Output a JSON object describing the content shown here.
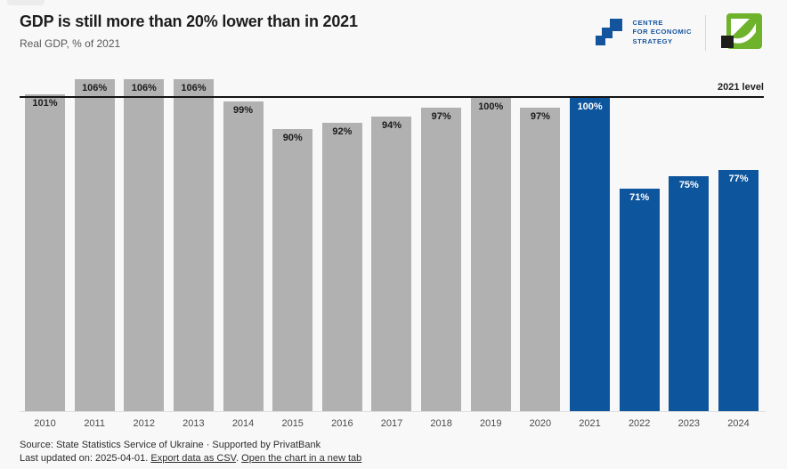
{
  "header": {
    "title": "GDP is still more than 20% lower than in 2021",
    "subtitle": "Real GDP, % of 2021",
    "ces_logo": {
      "lines": [
        "CENTRE",
        "FOR ECONOMIC",
        "STRATEGY"
      ]
    }
  },
  "chart_data": {
    "type": "bar",
    "title": "GDP is still more than 20% lower than in 2021",
    "subtitle": "Real GDP, % of 2021",
    "categories": [
      "2010",
      "2011",
      "2012",
      "2013",
      "2014",
      "2015",
      "2016",
      "2017",
      "2018",
      "2019",
      "2020",
      "2021",
      "2022",
      "2023",
      "2024"
    ],
    "values": [
      101,
      106,
      106,
      106,
      99,
      90,
      92,
      94,
      97,
      100,
      97,
      100,
      71,
      75,
      77
    ],
    "unit": "%",
    "reference_line": {
      "value": 100,
      "label": "2021 level"
    },
    "highlight_start_index": 11,
    "colors": {
      "default": "#b1b1b1",
      "highlight": "#0d559c",
      "reference_line": "#141414"
    },
    "xlabel": "",
    "ylabel": "",
    "ylim": [
      0,
      109
    ],
    "grid": false,
    "legend": "none"
  },
  "footer": {
    "source": "Source: State Statistics Service of Ukraine · Supported by PrivatBank",
    "last_updated_prefix": "Last updated on: 2025-04-01.",
    "export_link": "Export data as CSV",
    "separator": ".",
    "open_link": "Open the chart in a new tab"
  }
}
